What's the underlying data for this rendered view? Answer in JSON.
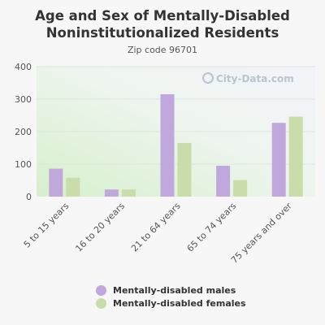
{
  "chart_data": {
    "type": "bar",
    "title": "Age and Sex of Mentally-Disabled Noninstitutionalized Residents",
    "subtitle": "Zip code 96701",
    "watermark": "City-Data.com",
    "categories": [
      "5 to 15 years",
      "16 to 20 years",
      "21 to 64 years",
      "65 to 74 years",
      "75 years and over"
    ],
    "series": [
      {
        "name": "Mentally-disabled males",
        "color": "#c0a8dc",
        "values": [
          86,
          22,
          315,
          95,
          227
        ]
      },
      {
        "name": "Mentally-disabled females",
        "color": "#c9dcaa",
        "values": [
          58,
          22,
          165,
          51,
          246
        ]
      }
    ],
    "ylim": [
      0,
      400
    ],
    "yticks": [
      0,
      100,
      200,
      300,
      400
    ],
    "grid": true,
    "legend_position": "bottom"
  }
}
